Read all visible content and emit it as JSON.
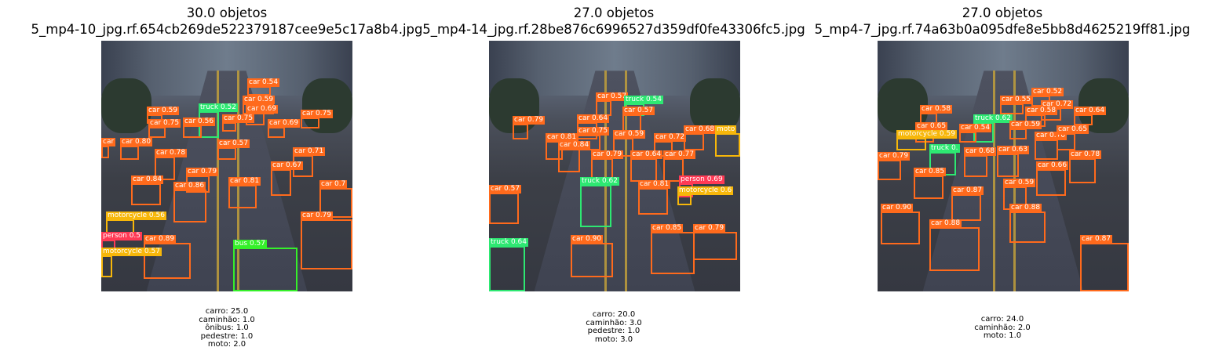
{
  "colors": {
    "car": "#ff6a1c",
    "truck": "#2de872",
    "bus": "#35f02a",
    "person": "#ff3a55",
    "motorcycle": "#f7b70a"
  },
  "panels": [
    {
      "title": "30.0 objetos",
      "filename": "5_mp4-10_jpg.rf.654cb269de522379187cee9e5c17a8b4.jpg",
      "counts": [
        "carro: 25.0",
        "caminhão: 1.0",
        "ônibus: 1.0",
        "pedestre: 1.0",
        "moto: 2.0"
      ]
    },
    {
      "title": "27.0 objetos",
      "filename": "5_mp4-14_jpg.rf.28be876c6996527d359df0fe43306fc5.jpg",
      "counts": [
        "carro: 20.0",
        "caminhão: 3.0",
        "pedestre: 1.0",
        "moto: 3.0"
      ]
    },
    {
      "title": "27.0 objetos",
      "filename": "5_mp4-7_jpg.rf.74a63b0a095dfe8e5bb8d4625219ff81.jpg",
      "counts": [
        "carro: 24.0",
        "caminhão: 2.0",
        "moto: 1.0"
      ]
    }
  ],
  "detections": [
    [
      {
        "cls": "car",
        "label": "car 0.54"
      },
      {
        "cls": "car",
        "label": "car 0.59"
      },
      {
        "cls": "truck",
        "label": "truck 0.52"
      },
      {
        "cls": "car",
        "label": "car 0.59"
      },
      {
        "cls": "car",
        "label": "car 0.69"
      },
      {
        "cls": "car",
        "label": "car 0.75"
      },
      {
        "cls": "car",
        "label": "car 0.75"
      },
      {
        "cls": "car",
        "label": "car 0.56"
      },
      {
        "cls": "car",
        "label": "car 0.69"
      },
      {
        "cls": "car",
        "label": "car 0.75"
      },
      {
        "cls": "car",
        "label": "car 0.80"
      },
      {
        "cls": "car",
        "label": "car 0.57"
      },
      {
        "cls": "car",
        "label": "car 0.78"
      },
      {
        "cls": "car",
        "label": "car 0.71"
      },
      {
        "cls": "car",
        "label": "car 0.79"
      },
      {
        "cls": "car",
        "label": "car 0.67"
      },
      {
        "cls": "car",
        "label": "car 0.84"
      },
      {
        "cls": "car",
        "label": "car 0.86"
      },
      {
        "cls": "car",
        "label": "car 0.81"
      },
      {
        "cls": "car",
        "label": "car 0.7"
      },
      {
        "cls": "car",
        "label": "car 0.79"
      },
      {
        "cls": "motorcycle",
        "label": "motorcycle 0.56"
      },
      {
        "cls": "person",
        "label": "person 0.5"
      },
      {
        "cls": "car",
        "label": "car 0.89"
      },
      {
        "cls": "bus",
        "label": "bus 0.57"
      },
      {
        "cls": "motorcycle",
        "label": "motorcycle 0.57"
      },
      {
        "cls": "car",
        "label": "car"
      }
    ],
    [
      {
        "cls": "car",
        "label": "car 0.57"
      },
      {
        "cls": "truck",
        "label": "truck 0.54"
      },
      {
        "cls": "car",
        "label": "car 0.57"
      },
      {
        "cls": "car",
        "label": "car 0.79"
      },
      {
        "cls": "car",
        "label": "car 0.64"
      },
      {
        "cls": "car",
        "label": "car 0.75"
      },
      {
        "cls": "car",
        "label": "car 0.68"
      },
      {
        "cls": "car",
        "label": "car 0.81"
      },
      {
        "cls": "car",
        "label": "car 0.59"
      },
      {
        "cls": "car",
        "label": "car 0.72"
      },
      {
        "cls": "car",
        "label": "car 0.84"
      },
      {
        "cls": "car",
        "label": "car 0.79"
      },
      {
        "cls": "car",
        "label": "car 0.64"
      },
      {
        "cls": "car",
        "label": "car 0.77"
      },
      {
        "cls": "truck",
        "label": "truck 0.62"
      },
      {
        "cls": "car",
        "label": "car 0.81"
      },
      {
        "cls": "person",
        "label": "person 0.69"
      },
      {
        "cls": "motorcycle",
        "label": "motorcycle 0.6"
      },
      {
        "cls": "car",
        "label": "car 0.57"
      },
      {
        "cls": "car",
        "label": "car 0.79"
      },
      {
        "cls": "car",
        "label": "car 0.85"
      },
      {
        "cls": "truck",
        "label": "truck 0.64"
      },
      {
        "cls": "car",
        "label": "car 0.90"
      },
      {
        "cls": "motorcycle",
        "label": "moto"
      }
    ],
    [
      {
        "cls": "car",
        "label": "car 0.52"
      },
      {
        "cls": "car",
        "label": "car 0.55"
      },
      {
        "cls": "car",
        "label": "car 0.72"
      },
      {
        "cls": "car",
        "label": "car 0.58"
      },
      {
        "cls": "car",
        "label": "car 0.58"
      },
      {
        "cls": "car",
        "label": "car 0.64"
      },
      {
        "cls": "truck",
        "label": "truck 0.62"
      },
      {
        "cls": "car",
        "label": "car 0.65"
      },
      {
        "cls": "car",
        "label": "car 0.54"
      },
      {
        "cls": "car",
        "label": "car 0.59"
      },
      {
        "cls": "motorcycle",
        "label": "motorcycle 0.59"
      },
      {
        "cls": "car",
        "label": "car 0.70"
      },
      {
        "cls": "car",
        "label": "car 0.65"
      },
      {
        "cls": "truck",
        "label": "truck 0."
      },
      {
        "cls": "car",
        "label": "car 0.68"
      },
      {
        "cls": "car",
        "label": "car 0.63"
      },
      {
        "cls": "car",
        "label": "car 0.79"
      },
      {
        "cls": "car",
        "label": "car 0.85"
      },
      {
        "cls": "car",
        "label": "car 0.66"
      },
      {
        "cls": "car",
        "label": "car 0.78"
      },
      {
        "cls": "car",
        "label": "car 0.59"
      },
      {
        "cls": "car",
        "label": "car 0.87"
      },
      {
        "cls": "car",
        "label": "car 0.90"
      },
      {
        "cls": "car",
        "label": "car 0.88"
      },
      {
        "cls": "car",
        "label": "car 0.88"
      },
      {
        "cls": "car",
        "label": "car 0.87"
      }
    ]
  ]
}
